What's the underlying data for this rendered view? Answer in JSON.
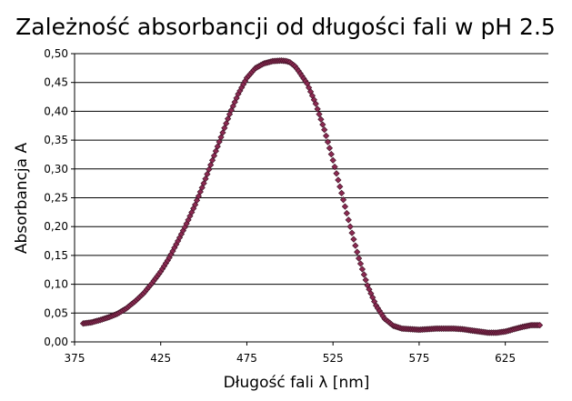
{
  "chart_data": {
    "type": "scatter",
    "title": "Zależność absorbancji od długości fali w pH 2.5",
    "xlabel": "Długość fali λ [nm]",
    "ylabel": "Absorbancja A",
    "xlim": [
      375,
      650
    ],
    "ylim": [
      0,
      0.5
    ],
    "x_ticks": [
      "375",
      "425",
      "475",
      "525",
      "575",
      "625"
    ],
    "y_ticks": [
      "0,00",
      "0,05",
      "0,10",
      "0,15",
      "0,20",
      "0,25",
      "0,30",
      "0,35",
      "0,40",
      "0,45",
      "0,50"
    ],
    "grid": "horizontal",
    "legend": "none",
    "marker_color": "#8b2a52",
    "marker_shape": "diamond",
    "series": [
      {
        "x": [
          380,
          385,
          390,
          395,
          400,
          405,
          410,
          415,
          420,
          425,
          430,
          435,
          440,
          445,
          450,
          455,
          460,
          465,
          470,
          475,
          480,
          485,
          490,
          495,
          498,
          500,
          503,
          505,
          510,
          515,
          520,
          525,
          530,
          535,
          540,
          545,
          550,
          555,
          560,
          565,
          570,
          575,
          580,
          585,
          590,
          595,
          600,
          605,
          610,
          615,
          620,
          625,
          630,
          635,
          640,
          645
        ],
        "y": [
          0.032,
          0.034,
          0.038,
          0.043,
          0.049,
          0.058,
          0.07,
          0.084,
          0.102,
          0.122,
          0.146,
          0.175,
          0.205,
          0.238,
          0.275,
          0.315,
          0.355,
          0.395,
          0.43,
          0.458,
          0.475,
          0.483,
          0.487,
          0.488,
          0.487,
          0.485,
          0.478,
          0.47,
          0.448,
          0.413,
          0.368,
          0.315,
          0.258,
          0.2,
          0.145,
          0.098,
          0.063,
          0.04,
          0.028,
          0.023,
          0.022,
          0.021,
          0.022,
          0.023,
          0.023,
          0.023,
          0.022,
          0.02,
          0.018,
          0.016,
          0.016,
          0.018,
          0.022,
          0.026,
          0.029,
          0.029
        ]
      }
    ]
  }
}
